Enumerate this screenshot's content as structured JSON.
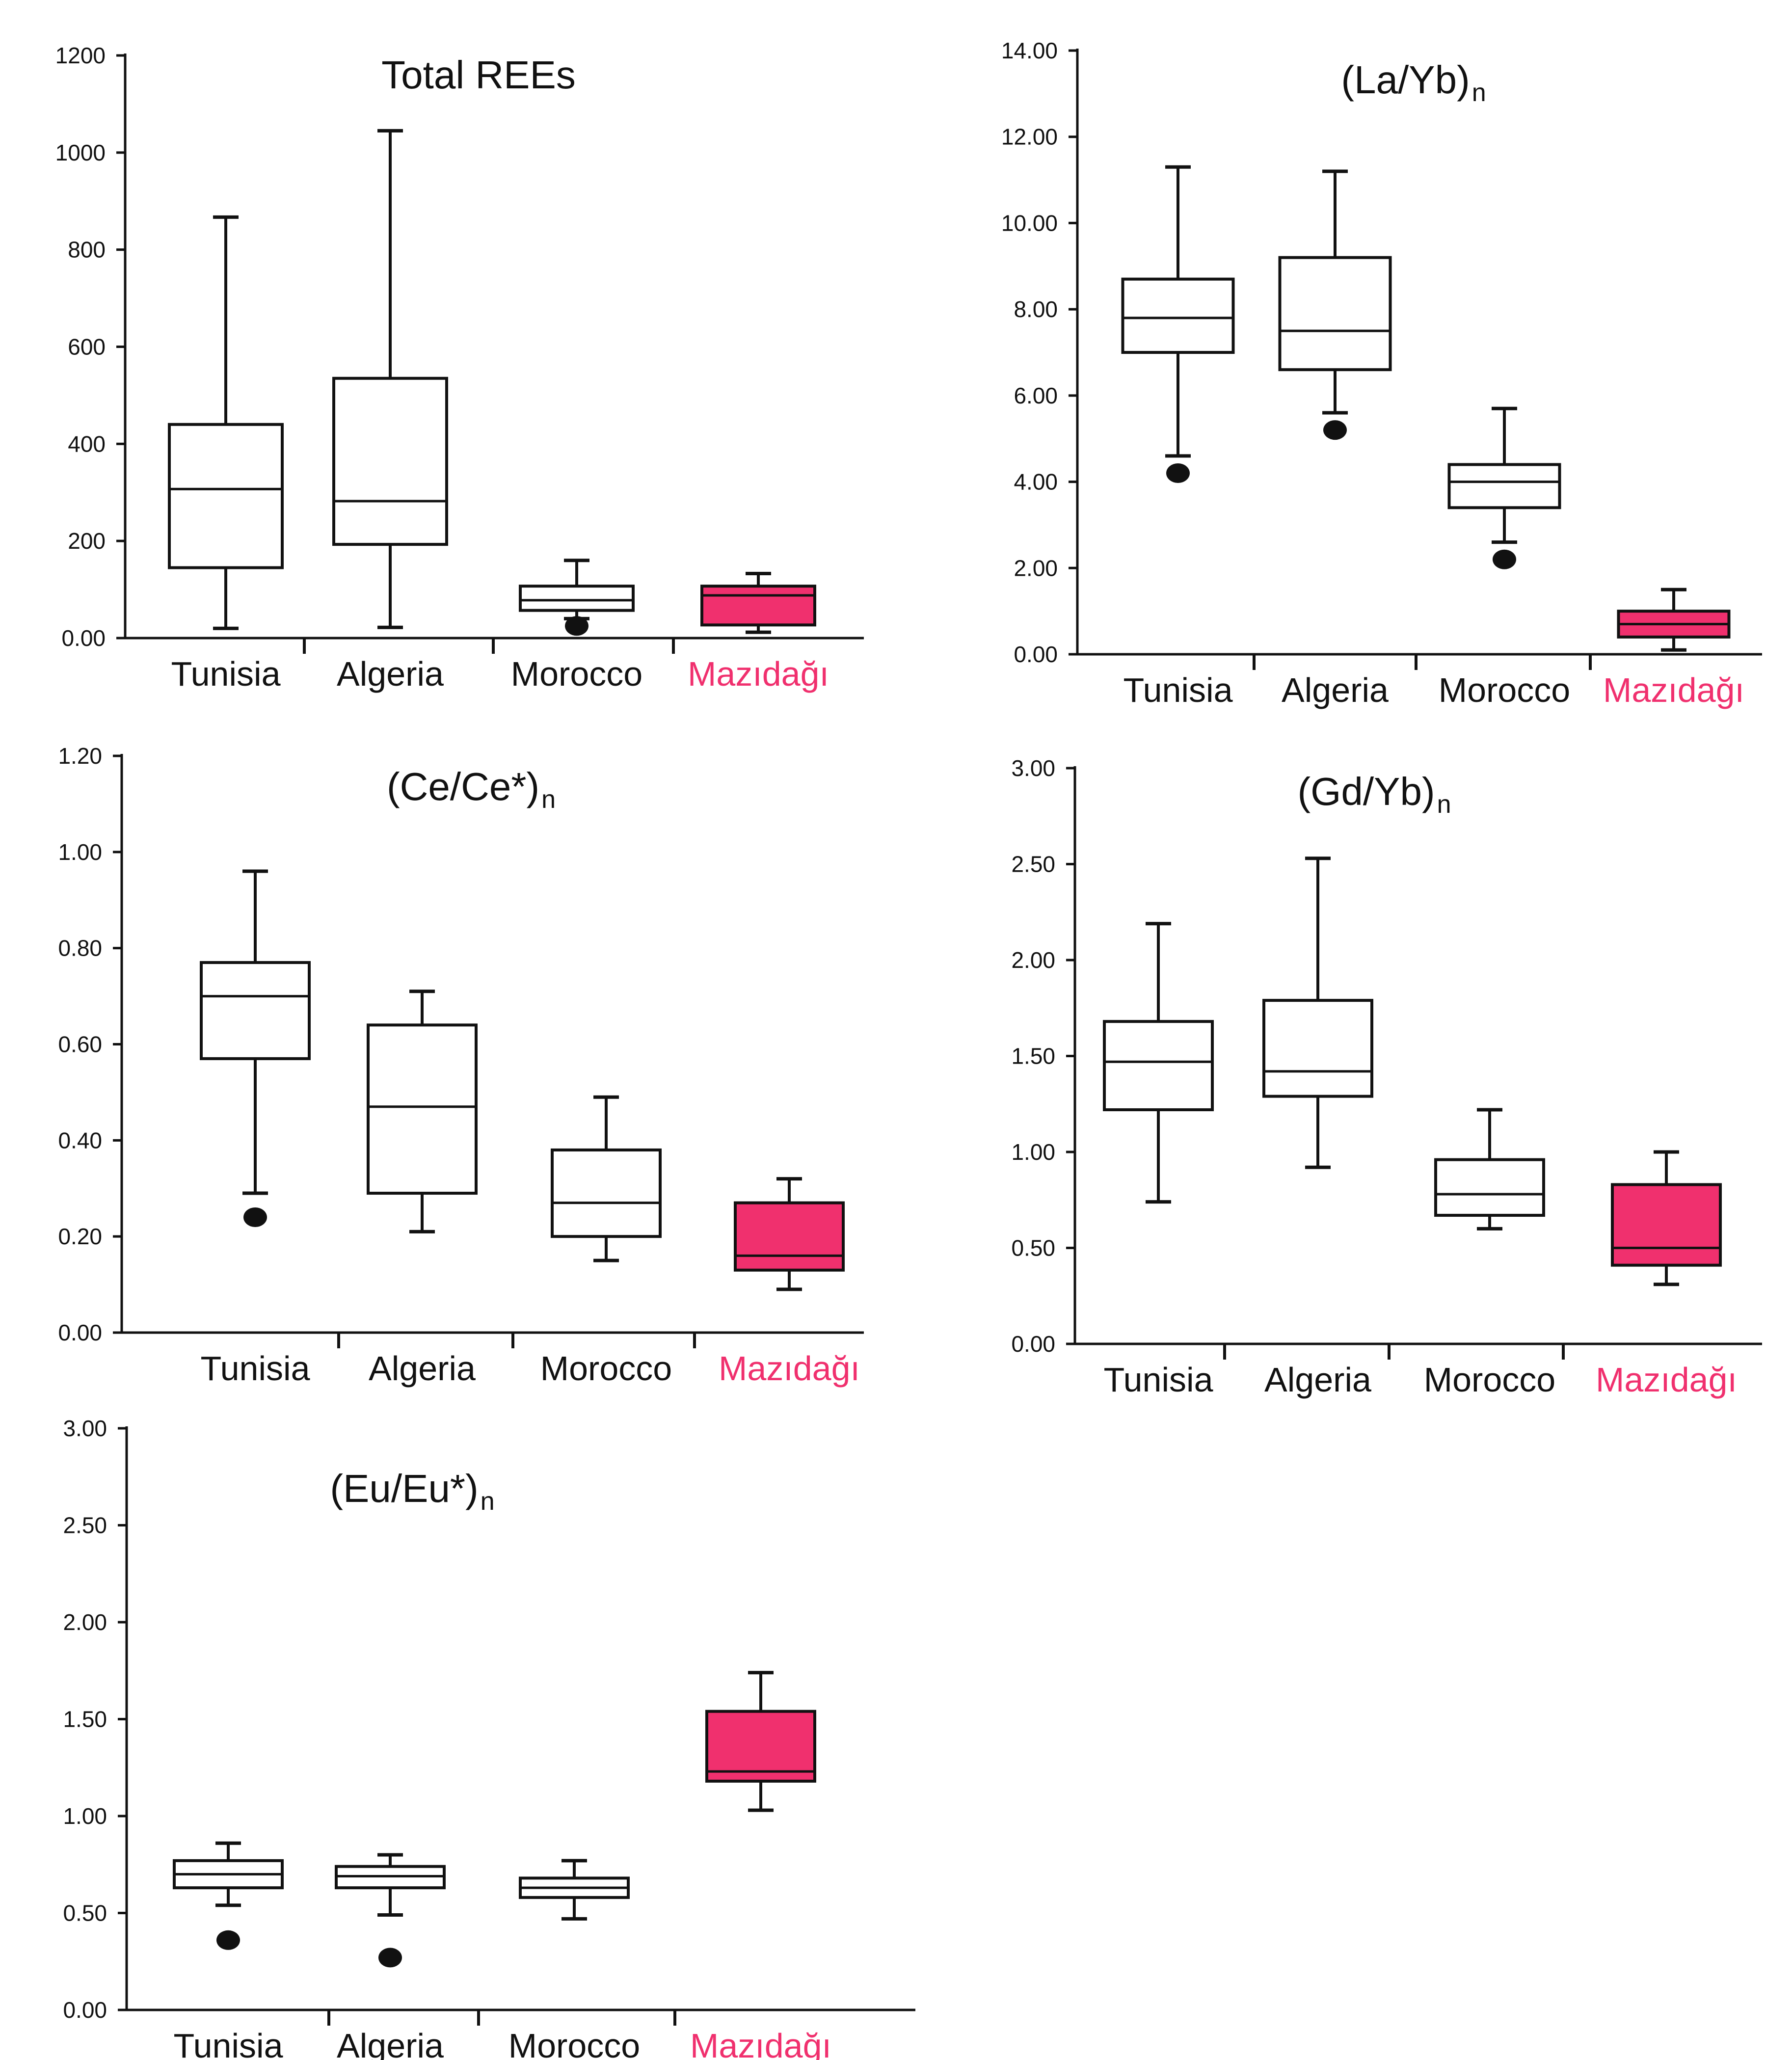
{
  "colors": {
    "axis": "#111111",
    "highlight": "#f0306e",
    "box_plain": "#ffffff"
  },
  "chart_data": [
    {
      "type": "box",
      "title": "Total REEs",
      "title_sub": "",
      "ylim": [
        0,
        1200
      ],
      "yticks": [
        0,
        200,
        400,
        600,
        800,
        1000,
        1200
      ],
      "ytick_labels": [
        "0.00",
        "200",
        "400",
        "600",
        "800",
        "1000",
        "1200"
      ],
      "categories": [
        "Tunisia",
        "Algeria",
        "Morocco",
        "Mazıdağı"
      ],
      "boxes": [
        {
          "min": 20,
          "q1": 145,
          "median": 307,
          "q3": 440,
          "max": 867,
          "outliers": []
        },
        {
          "min": 22,
          "q1": 193,
          "median": 282,
          "q3": 535,
          "max": 1045,
          "outliers": []
        },
        {
          "min": 40,
          "q1": 57,
          "median": 78,
          "q3": 107,
          "max": 160,
          "outliers": [
            25
          ]
        },
        {
          "min": 12,
          "q1": 27,
          "median": 88,
          "q3": 107,
          "max": 133,
          "outliers": []
        }
      ]
    },
    {
      "type": "box",
      "title": "(La/Yb)",
      "title_sub": "n",
      "ylim": [
        0,
        14
      ],
      "yticks": [
        0,
        2,
        4,
        6,
        8,
        10,
        12,
        14
      ],
      "ytick_labels": [
        "0.00",
        "2.00",
        "4.00",
        "6.00",
        "8.00",
        "10.00",
        "12.00",
        "14.00"
      ],
      "categories": [
        "Tunisia",
        "Algeria",
        "Morocco",
        "Mazıdağı"
      ],
      "boxes": [
        {
          "min": 4.6,
          "q1": 7.0,
          "median": 7.8,
          "q3": 8.7,
          "max": 11.3,
          "outliers": [
            4.2
          ]
        },
        {
          "min": 5.6,
          "q1": 6.6,
          "median": 7.5,
          "q3": 9.2,
          "max": 11.2,
          "outliers": [
            5.2
          ]
        },
        {
          "min": 2.6,
          "q1": 3.4,
          "median": 4.0,
          "q3": 4.4,
          "max": 5.7,
          "outliers": [
            2.2
          ]
        },
        {
          "min": 0.1,
          "q1": 0.4,
          "median": 0.7,
          "q3": 1.0,
          "max": 1.5,
          "outliers": []
        }
      ]
    },
    {
      "type": "box",
      "title": "(Ce/Ce*)",
      "title_sub": "n",
      "ylim": [
        0,
        1.2
      ],
      "yticks": [
        0,
        0.2,
        0.4,
        0.6,
        0.8,
        1.0,
        1.2
      ],
      "ytick_labels": [
        "0.00",
        "0.20",
        "0.40",
        "0.60",
        "0.80",
        "1.00",
        "1.20"
      ],
      "categories": [
        "Tunisia",
        "Algeria",
        "Morocco",
        "Mazıdağı"
      ],
      "boxes": [
        {
          "min": 0.29,
          "q1": 0.57,
          "median": 0.7,
          "q3": 0.77,
          "max": 0.96,
          "outliers": [
            0.24
          ]
        },
        {
          "min": 0.21,
          "q1": 0.29,
          "median": 0.47,
          "q3": 0.64,
          "max": 0.71,
          "outliers": []
        },
        {
          "min": 0.15,
          "q1": 0.2,
          "median": 0.27,
          "q3": 0.38,
          "max": 0.49,
          "outliers": []
        },
        {
          "min": 0.09,
          "q1": 0.13,
          "median": 0.16,
          "q3": 0.27,
          "max": 0.32,
          "outliers": []
        }
      ]
    },
    {
      "type": "box",
      "title": "(Gd/Yb)",
      "title_sub": "n",
      "ylim": [
        0,
        3
      ],
      "yticks": [
        0,
        0.5,
        1.0,
        1.5,
        2.0,
        2.5,
        3.0
      ],
      "ytick_labels": [
        "0.00",
        "0.50",
        "1.00",
        "1.50",
        "2.00",
        "2.50",
        "3.00"
      ],
      "categories": [
        "Tunisia",
        "Algeria",
        "Morocco",
        "Mazıdağı"
      ],
      "boxes": [
        {
          "min": 0.74,
          "q1": 1.22,
          "median": 1.47,
          "q3": 1.68,
          "max": 2.19,
          "outliers": []
        },
        {
          "min": 0.92,
          "q1": 1.29,
          "median": 1.42,
          "q3": 1.79,
          "max": 2.53,
          "outliers": []
        },
        {
          "min": 0.6,
          "q1": 0.67,
          "median": 0.78,
          "q3": 0.96,
          "max": 1.22,
          "outliers": []
        },
        {
          "min": 0.31,
          "q1": 0.41,
          "median": 0.5,
          "q3": 0.83,
          "max": 1.0,
          "outliers": []
        }
      ]
    },
    {
      "type": "box",
      "title": "(Eu/Eu*)",
      "title_sub": "n",
      "ylim": [
        0,
        3
      ],
      "yticks": [
        0,
        0.5,
        1.0,
        1.5,
        2.0,
        2.5,
        3.0
      ],
      "ytick_labels": [
        "0.00",
        "0.50",
        "1.00",
        "1.50",
        "2.00",
        "2.50",
        "3.00"
      ],
      "categories": [
        "Tunisia",
        "Algeria",
        "Morocco",
        "Mazıdağı"
      ],
      "boxes": [
        {
          "min": 0.54,
          "q1": 0.63,
          "median": 0.7,
          "q3": 0.77,
          "max": 0.86,
          "outliers": [
            0.36
          ]
        },
        {
          "min": 0.49,
          "q1": 0.63,
          "median": 0.69,
          "q3": 0.74,
          "max": 0.8,
          "outliers": [
            0.27
          ]
        },
        {
          "min": 0.47,
          "q1": 0.58,
          "median": 0.63,
          "q3": 0.68,
          "max": 0.77,
          "outliers": []
        },
        {
          "min": 1.03,
          "q1": 1.18,
          "median": 1.23,
          "q3": 1.54,
          "max": 1.74,
          "outliers": []
        }
      ]
    }
  ]
}
